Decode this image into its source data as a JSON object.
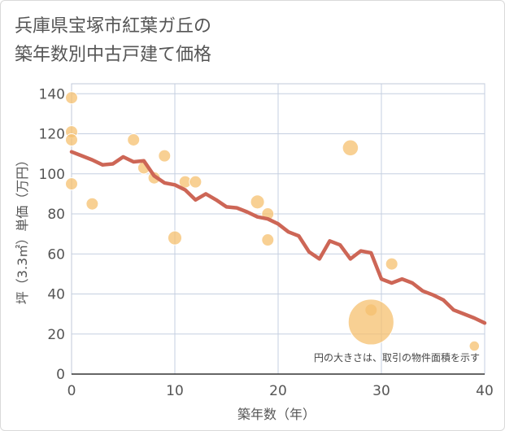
{
  "title_lines": [
    "兵庫県宝塚市紅葉ガ丘の",
    "築年数別中古戸建て価格"
  ],
  "note": "円の大きさは、取引の物件面積を示す",
  "colors": {
    "bubble": "#f5c06f",
    "trend": "#cd6656",
    "grid": "#c5cfe0",
    "plot_border": "#c0c8d8",
    "text": "#555555"
  },
  "chart_data": {
    "type": "scatter",
    "xlabel": "築年数（年）",
    "ylabel": "坪（3.3㎡）単価（万円）",
    "xlim": [
      0,
      40
    ],
    "ylim": [
      0,
      145
    ],
    "x_ticks": [
      0,
      10,
      20,
      30,
      40
    ],
    "y_ticks": [
      0,
      20,
      40,
      60,
      80,
      100,
      120,
      140
    ],
    "grid": true,
    "bubble_series": [
      {
        "x": 0,
        "y": 138,
        "size": 1
      },
      {
        "x": 0,
        "y": 121,
        "size": 1
      },
      {
        "x": 0,
        "y": 117,
        "size": 1
      },
      {
        "x": 0,
        "y": 95,
        "size": 1
      },
      {
        "x": 2,
        "y": 85,
        "size": 1
      },
      {
        "x": 6,
        "y": 117,
        "size": 1
      },
      {
        "x": 7,
        "y": 103,
        "size": 1
      },
      {
        "x": 8,
        "y": 98,
        "size": 1
      },
      {
        "x": 9,
        "y": 109,
        "size": 1
      },
      {
        "x": 10,
        "y": 68,
        "size": 1.3
      },
      {
        "x": 11,
        "y": 96,
        "size": 1
      },
      {
        "x": 12,
        "y": 96,
        "size": 1
      },
      {
        "x": 18,
        "y": 86,
        "size": 1.3
      },
      {
        "x": 19,
        "y": 80,
        "size": 1
      },
      {
        "x": 19,
        "y": 67,
        "size": 1
      },
      {
        "x": 27,
        "y": 113,
        "size": 1.7
      },
      {
        "x": 29,
        "y": 32,
        "size": 1
      },
      {
        "x": 29,
        "y": 26,
        "size": 14
      },
      {
        "x": 31,
        "y": 55,
        "size": 1
      },
      {
        "x": 39,
        "y": 14,
        "size": 0.7
      }
    ],
    "trend_series": {
      "x": [
        0,
        1,
        2,
        3,
        4,
        5,
        6,
        7,
        8,
        9,
        10,
        11,
        12,
        13,
        14,
        15,
        16,
        17,
        18,
        19,
        20,
        21,
        22,
        23,
        24,
        25,
        26,
        27,
        28,
        29,
        30,
        31,
        32,
        33,
        34,
        35,
        36,
        37,
        38,
        39,
        40
      ],
      "y": [
        111,
        109,
        107,
        104.5,
        105,
        108.5,
        106,
        106.5,
        99,
        95.5,
        94.5,
        92,
        87,
        90,
        87,
        83.5,
        83,
        81,
        78.5,
        77.5,
        75,
        71,
        69,
        61,
        57.5,
        66.5,
        64.5,
        57.5,
        61.5,
        60.5,
        47.5,
        45.5,
        47.5,
        45.5,
        41.5,
        39.5,
        37,
        32,
        30,
        28,
        25.5
      ]
    }
  }
}
